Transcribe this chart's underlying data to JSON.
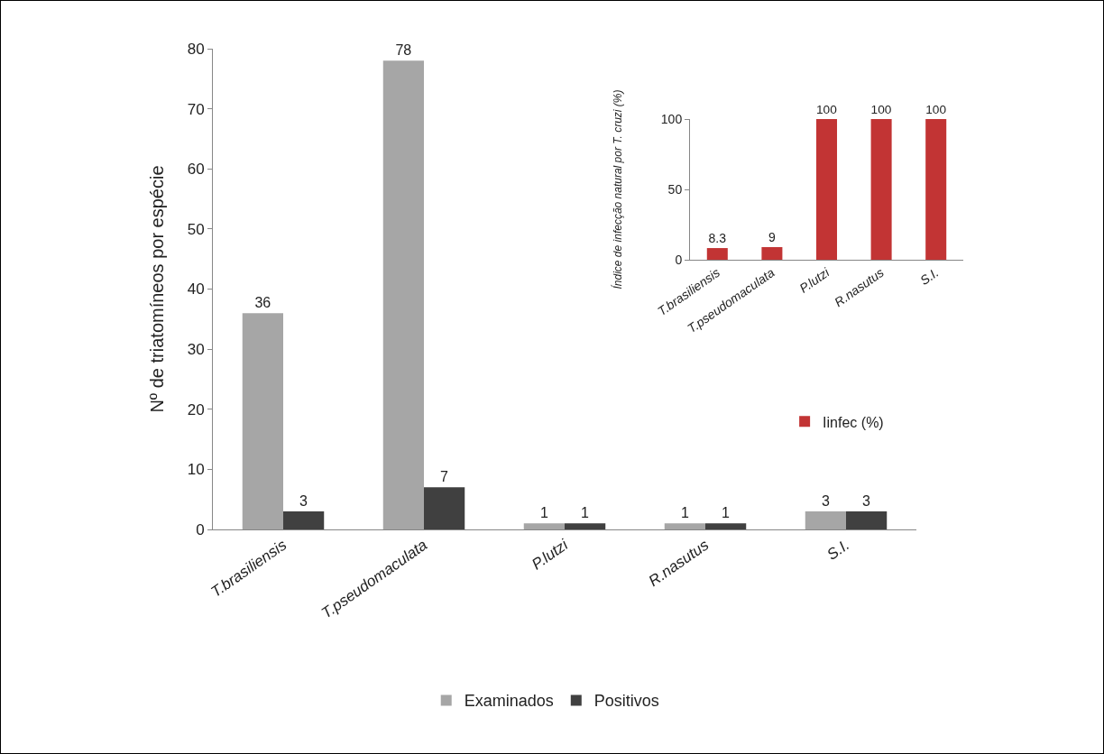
{
  "chart_data": [
    {
      "type": "bar",
      "categories": [
        "T.brasiliensis",
        "T.pseudomaculata",
        "P.lutzi",
        "R.nasutus",
        "S.I."
      ],
      "ylabel": "Nº de triatomíneos por espécie",
      "ylim": [
        0,
        80
      ],
      "yticks": [
        0,
        10,
        20,
        30,
        40,
        50,
        60,
        70,
        80
      ],
      "grid": false,
      "legend": "bottom",
      "data_labels": true,
      "series": [
        {
          "name": "Examinados",
          "color": "#a6a6a6",
          "values": [
            36,
            78,
            1,
            1,
            3
          ]
        },
        {
          "name": "Positivos",
          "color": "#404040",
          "values": [
            3,
            7,
            1,
            1,
            3
          ]
        }
      ]
    },
    {
      "type": "bar",
      "categories": [
        "T.brasiliensis",
        "T.pseudomaculata",
        "P.lutzi",
        "R.nasutus",
        "S.I."
      ],
      "ylabel": "Índice de infecção natural por T. cruzi (%)",
      "ylim": [
        0,
        100
      ],
      "yticks": [
        0,
        50,
        100
      ],
      "grid": false,
      "legend": "bottom",
      "data_labels": true,
      "series": [
        {
          "name": "Iinfec (%)",
          "color": "#c23434",
          "values": [
            8.3,
            9,
            100,
            100,
            100
          ]
        }
      ]
    }
  ]
}
